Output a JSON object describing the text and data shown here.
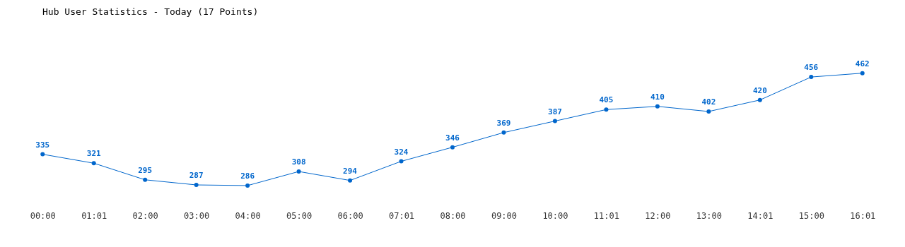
{
  "chart_data": {
    "type": "line",
    "title": "Hub User Statistics - Today (17 Points)",
    "categories": [
      "00:00",
      "01:01",
      "02:00",
      "03:00",
      "04:00",
      "05:00",
      "06:00",
      "07:01",
      "08:00",
      "09:00",
      "10:00",
      "11:01",
      "12:00",
      "13:00",
      "14:01",
      "15:00",
      "16:01"
    ],
    "series": [
      {
        "color": "#0066cc",
        "values": [
          335,
          321,
          295,
          287,
          286,
          308,
          294,
          324,
          346,
          369,
          387,
          405,
          410,
          402,
          420,
          456,
          462
        ]
      }
    ],
    "data_labels": true,
    "marker": "circle",
    "grid": false
  }
}
